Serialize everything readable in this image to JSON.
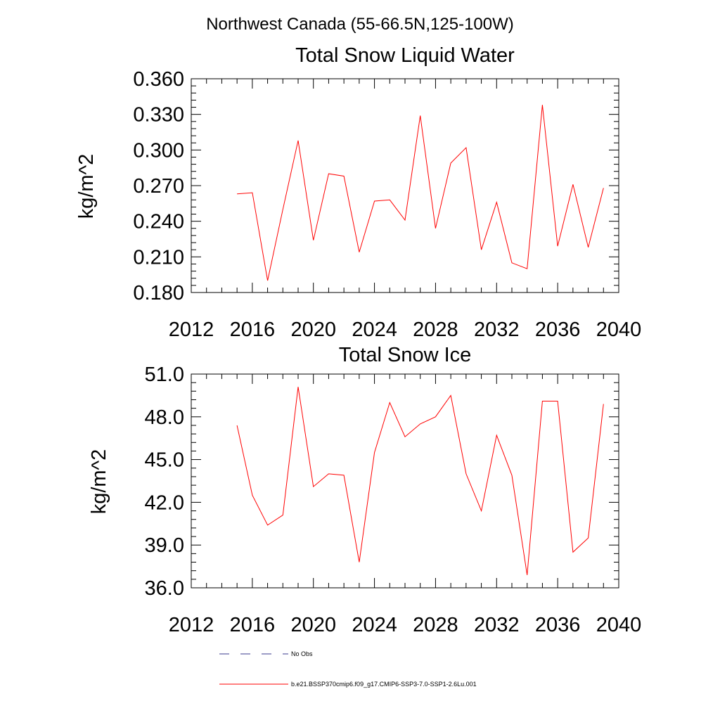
{
  "figure": {
    "title": "Northwest Canada (55-66.5N,125-100W)"
  },
  "chart_data": [
    {
      "type": "line",
      "title": "Total Snow Liquid Water",
      "xlabel": "",
      "ylabel": "kg/m^2",
      "xlim": [
        2012,
        2040
      ],
      "ylim": [
        0.18,
        0.36
      ],
      "xticks": [
        "2012",
        "2016",
        "2020",
        "2024",
        "2028",
        "2032",
        "2036",
        "2040"
      ],
      "yticks": [
        "0.180",
        "0.210",
        "0.240",
        "0.270",
        "0.300",
        "0.330",
        "0.360"
      ],
      "series": [
        {
          "name": "b.e21.BSSP370cmip6.f09_g17.CMIP6-SSP3-7.0-SSP1-2.6Lu.001",
          "color": "#ff0000",
          "x": [
            2015,
            2016,
            2017,
            2018,
            2019,
            2020,
            2021,
            2022,
            2023,
            2024,
            2025,
            2026,
            2027,
            2028,
            2029,
            2030,
            2031,
            2032,
            2033,
            2034,
            2035,
            2036,
            2037,
            2038,
            2039
          ],
          "y": [
            0.263,
            0.264,
            0.19,
            0.25,
            0.308,
            0.224,
            0.28,
            0.278,
            0.214,
            0.257,
            0.258,
            0.241,
            0.329,
            0.234,
            0.289,
            0.302,
            0.216,
            0.256,
            0.205,
            0.2,
            0.338,
            0.219,
            0.271,
            0.218,
            0.268
          ]
        }
      ]
    },
    {
      "type": "line",
      "title": "Total Snow Ice",
      "xlabel": "",
      "ylabel": "kg/m^2",
      "xlim": [
        2012,
        2040
      ],
      "ylim": [
        36.0,
        51.0
      ],
      "xticks": [
        "2012",
        "2016",
        "2020",
        "2024",
        "2028",
        "2032",
        "2036",
        "2040"
      ],
      "yticks": [
        "36.0",
        "39.0",
        "42.0",
        "45.0",
        "48.0",
        "51.0"
      ],
      "series": [
        {
          "name": "b.e21.BSSP370cmip6.f09_g17.CMIP6-SSP3-7.0-SSP1-2.6Lu.001",
          "color": "#ff0000",
          "x": [
            2015,
            2016,
            2017,
            2018,
            2019,
            2020,
            2021,
            2022,
            2023,
            2024,
            2025,
            2026,
            2027,
            2028,
            2029,
            2030,
            2031,
            2032,
            2033,
            2034,
            2035,
            2036,
            2037,
            2038,
            2039
          ],
          "y": [
            47.4,
            42.5,
            40.4,
            41.1,
            50.1,
            43.1,
            44.0,
            43.9,
            37.8,
            45.5,
            49.0,
            46.6,
            47.5,
            48.0,
            49.5,
            44.0,
            41.4,
            46.7,
            43.9,
            36.9,
            49.1,
            49.1,
            38.5,
            39.5,
            48.9
          ]
        }
      ]
    }
  ],
  "legend": {
    "items": [
      {
        "label": "No Obs",
        "color": "#3a3a8c",
        "style": "dashed"
      },
      {
        "label": "b.e21.BSSP370cmip6.f09_g17.CMIP6-SSP3-7.0-SSP1-2.6Lu.001",
        "color": "#ff0000",
        "style": "solid"
      }
    ]
  }
}
